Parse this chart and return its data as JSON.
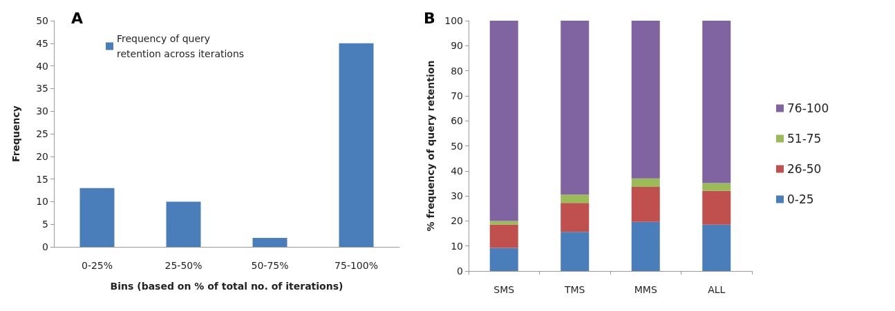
{
  "chart_data": [
    {
      "type": "bar",
      "title": "A",
      "xlabel": "Bins (based on % of total no. of iterations)",
      "ylabel": "Frequency",
      "categories": [
        "0-25%",
        "25-50%",
        "50-75%",
        "75-100%"
      ],
      "series": [
        {
          "name": "Frequency of query retention across iterations",
          "color": "#4a7ebb",
          "values": [
            13,
            10,
            2,
            45
          ]
        }
      ],
      "ylim": [
        0,
        50
      ],
      "yticks": [
        0,
        5,
        10,
        15,
        20,
        25,
        30,
        35,
        40,
        45,
        50
      ],
      "grid": false,
      "legend": "top left"
    },
    {
      "type": "bar",
      "title": "B",
      "ylabel": "% frequency of query retention",
      "categories": [
        "SMS",
        "TMS",
        "MMS",
        "ALL"
      ],
      "stacked": true,
      "series": [
        {
          "name": "0-25",
          "color": "#4a7ebb",
          "values": [
            9.2,
            15.6,
            19.6,
            18.5
          ]
        },
        {
          "name": "26-50",
          "color": "#c0504d",
          "values": [
            9.3,
            11.6,
            14.0,
            13.5
          ]
        },
        {
          "name": "51-75",
          "color": "#9bbb59",
          "values": [
            1.5,
            3.3,
            3.4,
            3.1
          ]
        },
        {
          "name": "76-100",
          "color": "#8064a2",
          "values": [
            80.0,
            69.5,
            63.0,
            64.9
          ]
        }
      ],
      "ylim": [
        0,
        100
      ],
      "yticks": [
        0,
        10,
        20,
        30,
        40,
        50,
        60,
        70,
        80,
        90,
        100
      ],
      "grid": false,
      "legend": "right"
    }
  ]
}
